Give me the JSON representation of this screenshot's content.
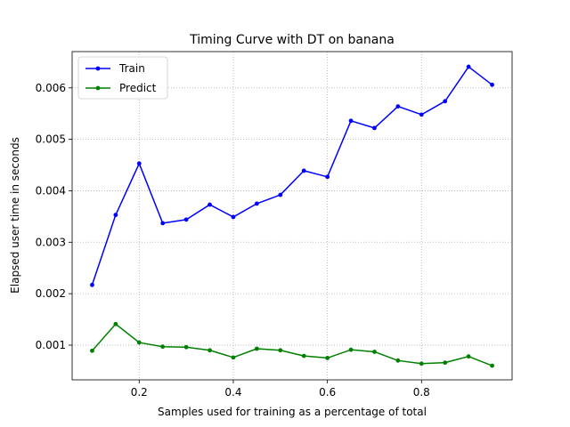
{
  "chart_data": {
    "type": "line",
    "title": "Timing Curve with DT on banana",
    "xlabel": "Samples used for training as a percentage of total",
    "ylabel": "Elapsed user time in seconds",
    "xlim": [
      0.0575,
      0.9925
    ],
    "ylim": [
      0.000325,
      0.006705
    ],
    "x_ticks": [
      0.2,
      0.4,
      0.6,
      0.8
    ],
    "x_tick_labels": [
      "0.2",
      "0.4",
      "0.6",
      "0.8"
    ],
    "y_ticks": [
      0.001,
      0.002,
      0.003,
      0.004,
      0.005,
      0.006
    ],
    "y_tick_labels": [
      "0.001",
      "0.002",
      "0.003",
      "0.004",
      "0.005",
      "0.006"
    ],
    "grid": true,
    "legend_position": "upper-left",
    "x": [
      0.1,
      0.15,
      0.2,
      0.25,
      0.3,
      0.35,
      0.4,
      0.45,
      0.5,
      0.55,
      0.6,
      0.65,
      0.7,
      0.75,
      0.8,
      0.85,
      0.9,
      0.95
    ],
    "series": [
      {
        "name": "Train",
        "color": "#0000ff",
        "values": [
          0.00217,
          0.00353,
          0.00453,
          0.00337,
          0.00344,
          0.00373,
          0.00349,
          0.00375,
          0.00392,
          0.00439,
          0.00427,
          0.00536,
          0.00522,
          0.00564,
          0.00548,
          0.00574,
          0.00641,
          0.00606
        ]
      },
      {
        "name": "Predict",
        "color": "#008000",
        "values": [
          0.00089,
          0.00141,
          0.00105,
          0.00097,
          0.00096,
          0.0009,
          0.00076,
          0.00093,
          0.0009,
          0.00079,
          0.00075,
          0.00091,
          0.00087,
          0.0007,
          0.00064,
          0.00066,
          0.00078,
          0.0006
        ]
      }
    ]
  }
}
